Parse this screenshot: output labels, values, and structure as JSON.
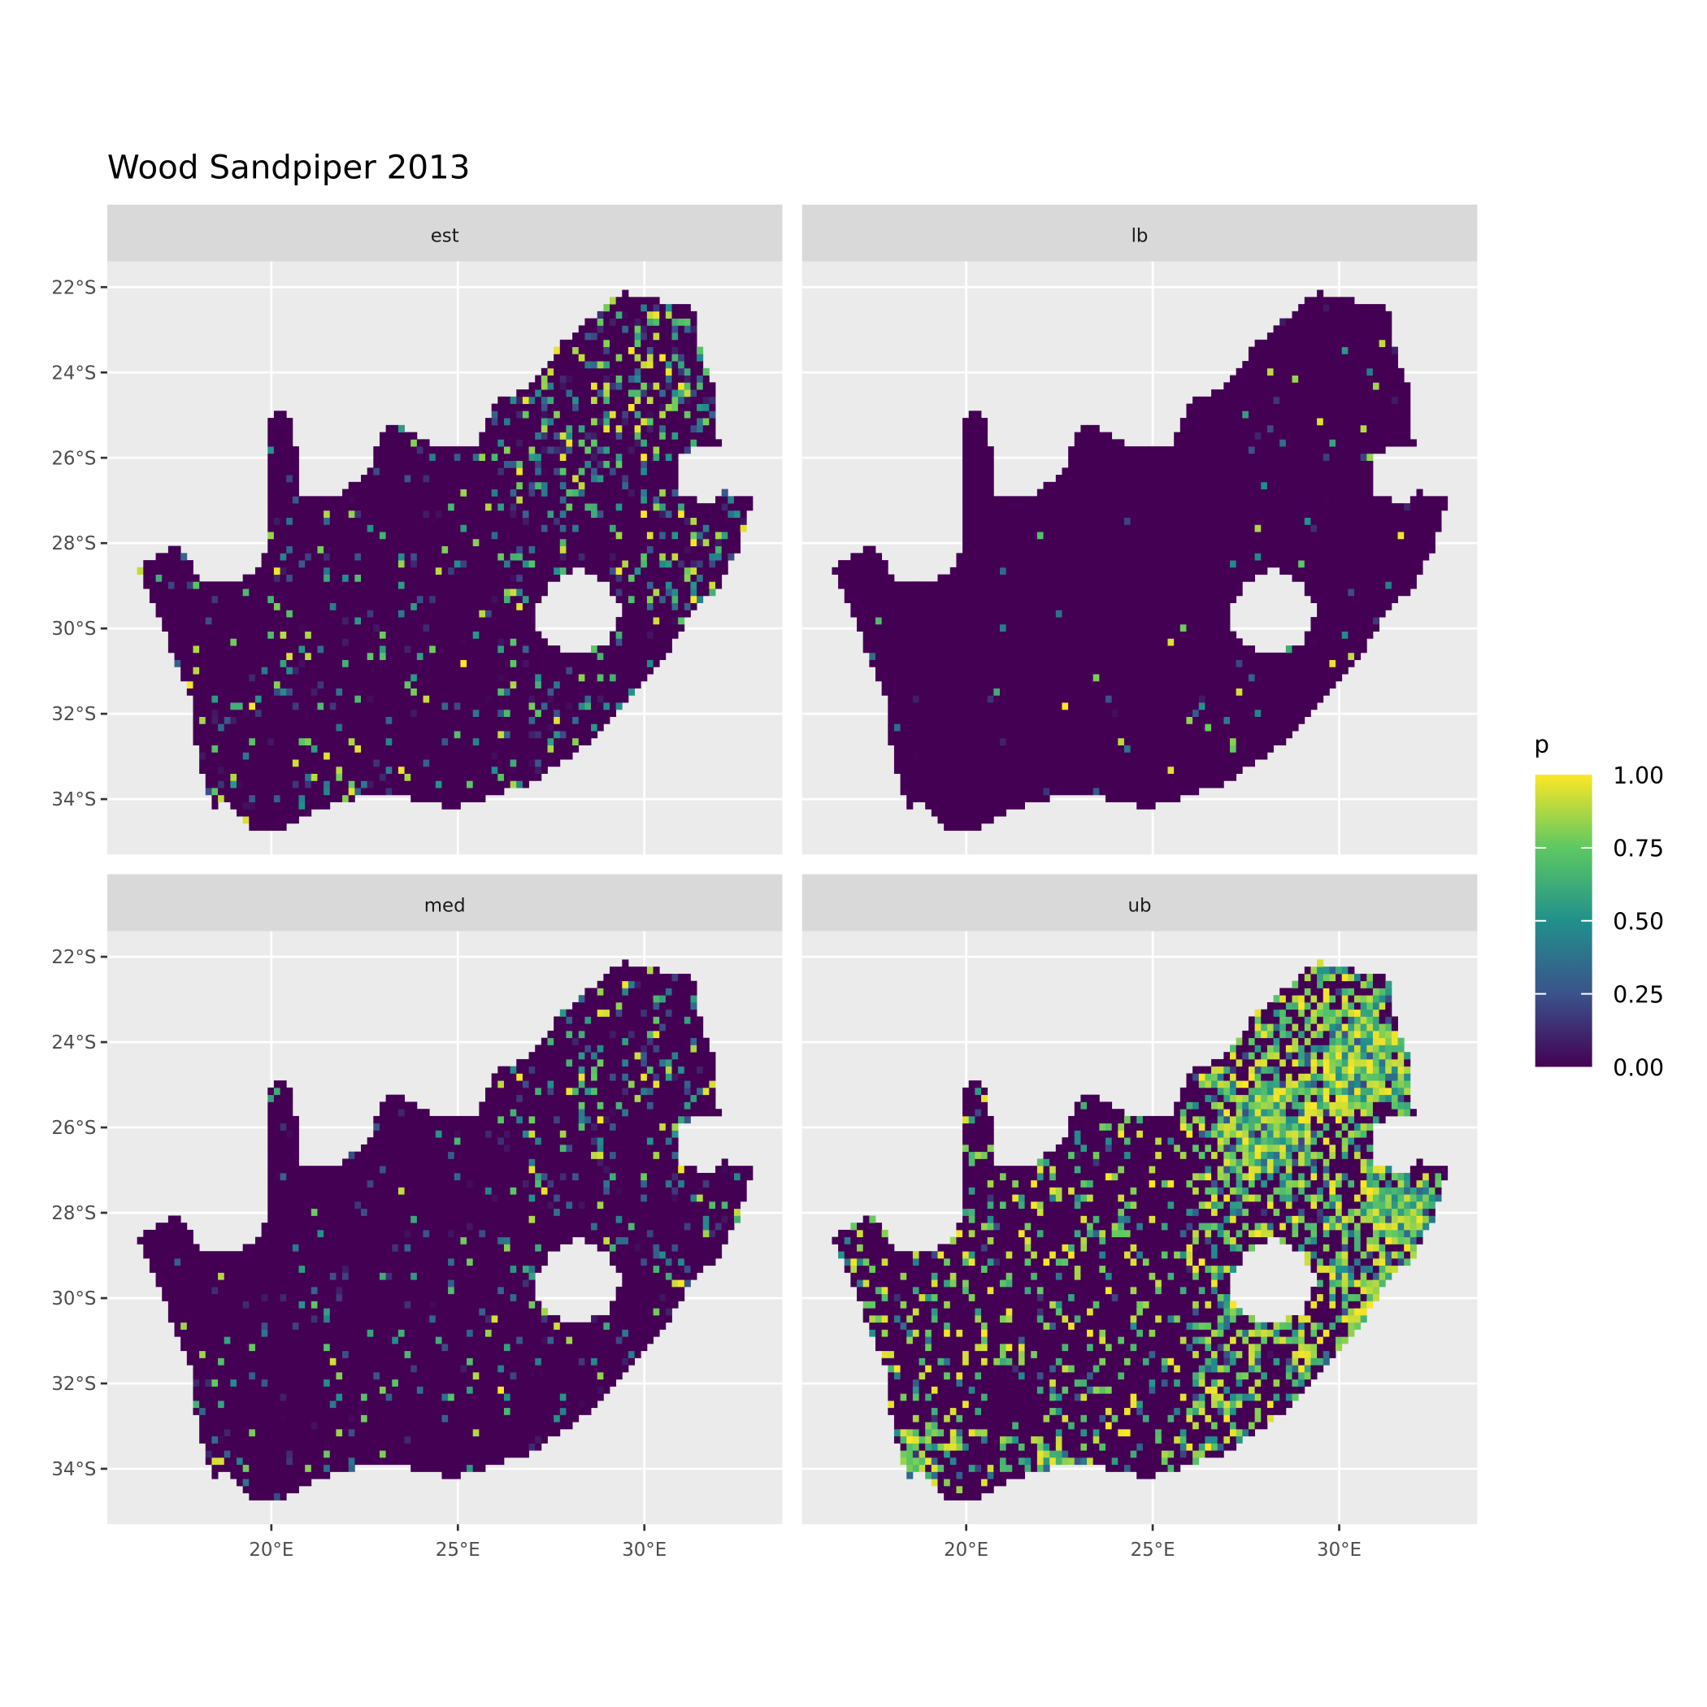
{
  "chart_data": {
    "type": "heatmap",
    "title": "Wood Sandpiper 2013",
    "xlabel": "",
    "ylabel": "",
    "facets": [
      "est",
      "lb",
      "med",
      "ub"
    ],
    "x_ticks": [
      "20°E",
      "25°E",
      "30°E"
    ],
    "x_tick_values": [
      20,
      25,
      30
    ],
    "y_ticks": [
      "22°S",
      "24°S",
      "26°S",
      "28°S",
      "30°S",
      "32°S",
      "34°S"
    ],
    "y_tick_values": [
      -22,
      -24,
      -26,
      -28,
      -30,
      -32,
      -34
    ],
    "xlim": [
      15.6,
      33.7
    ],
    "ylim": [
      -35.3,
      -21.4
    ],
    "grid": true,
    "legend": {
      "title": "p",
      "position": "right",
      "range": [
        0,
        1
      ],
      "ticks": [
        "1.00",
        "0.75",
        "0.50",
        "0.25",
        "0.00"
      ],
      "colormap": "viridis",
      "colors": [
        "#440154",
        "#3b528b",
        "#21908c",
        "#5dc863",
        "#fde725"
      ]
    },
    "facet_density": {
      "est": 0.35,
      "lb": 0.04,
      "med": 0.22,
      "ub": 0.85
    }
  }
}
